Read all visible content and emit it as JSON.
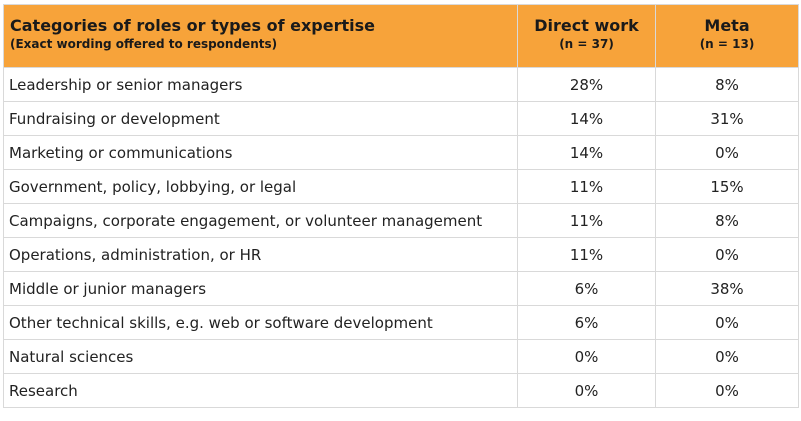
{
  "table": {
    "headers": [
      {
        "title": "Categories of roles or types of expertise",
        "subtitle": "(Exact wording offered to respondents)"
      },
      {
        "title": "Direct work",
        "subtitle": "(n = 37)"
      },
      {
        "title": "Meta",
        "subtitle": "(n = 13)"
      }
    ],
    "rows": [
      {
        "label": "Leadership or senior managers",
        "direct": "28%",
        "meta": "8%"
      },
      {
        "label": "Fundraising or development",
        "direct": "14%",
        "meta": "31%"
      },
      {
        "label": "Marketing or communications",
        "direct": "14%",
        "meta": "0%"
      },
      {
        "label": "Government, policy, lobbying, or legal",
        "direct": "11%",
        "meta": "15%"
      },
      {
        "label": "Campaigns, corporate engagement, or volunteer management",
        "direct": "11%",
        "meta": "8%"
      },
      {
        "label": "Operations, administration, or HR",
        "direct": "11%",
        "meta": "0%"
      },
      {
        "label": "Middle or junior managers",
        "direct": "6%",
        "meta": "38%"
      },
      {
        "label": "Other technical skills, e.g. web or software development",
        "direct": "6%",
        "meta": "0%"
      },
      {
        "label": "Natural sciences",
        "direct": "0%",
        "meta": "0%"
      },
      {
        "label": "Research",
        "direct": "0%",
        "meta": "0%"
      }
    ],
    "colors": {
      "header_bg": "#f7a33a",
      "border": "#d9d9d9"
    }
  }
}
